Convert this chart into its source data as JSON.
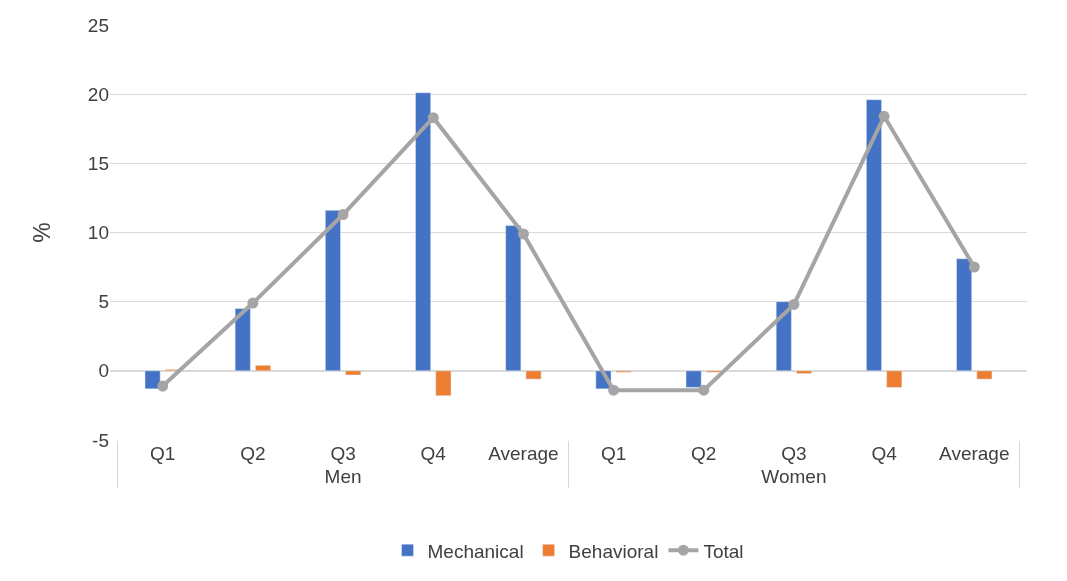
{
  "chart_data": {
    "type": "bar",
    "ylabel": "%",
    "categories": [
      "Q1",
      "Q2",
      "Q3",
      "Q4",
      "Average",
      "Q1",
      "Q2",
      "Q3",
      "Q4",
      "Average"
    ],
    "annotations": [
      "Men",
      "Women"
    ],
    "series": [
      {
        "name": "Mechanical",
        "color": "#4472c4",
        "values": [
          -1.3,
          4.5,
          11.6,
          20.1,
          10.5,
          -1.3,
          -1.2,
          5.0,
          19.6,
          8.1
        ]
      },
      {
        "name": "Behavioral",
        "color": "#ed7d31",
        "values": [
          0.1,
          0.4,
          -0.3,
          -1.8,
          -0.6,
          -0.1,
          -0.1,
          -0.2,
          -1.2,
          -0.6
        ]
      },
      {
        "name": "Total",
        "color": "#a5a5a5",
        "type": "line",
        "marker": "circle",
        "values": [
          -1.1,
          4.9,
          11.3,
          18.3,
          9.9,
          -1.4,
          -1.4,
          4.8,
          18.4,
          7.5
        ]
      }
    ],
    "ylim": [
      -5,
      25
    ],
    "yticks": [
      -5,
      0,
      5,
      10,
      15,
      20,
      25
    ],
    "grid": "y",
    "legend": "bottom"
  }
}
